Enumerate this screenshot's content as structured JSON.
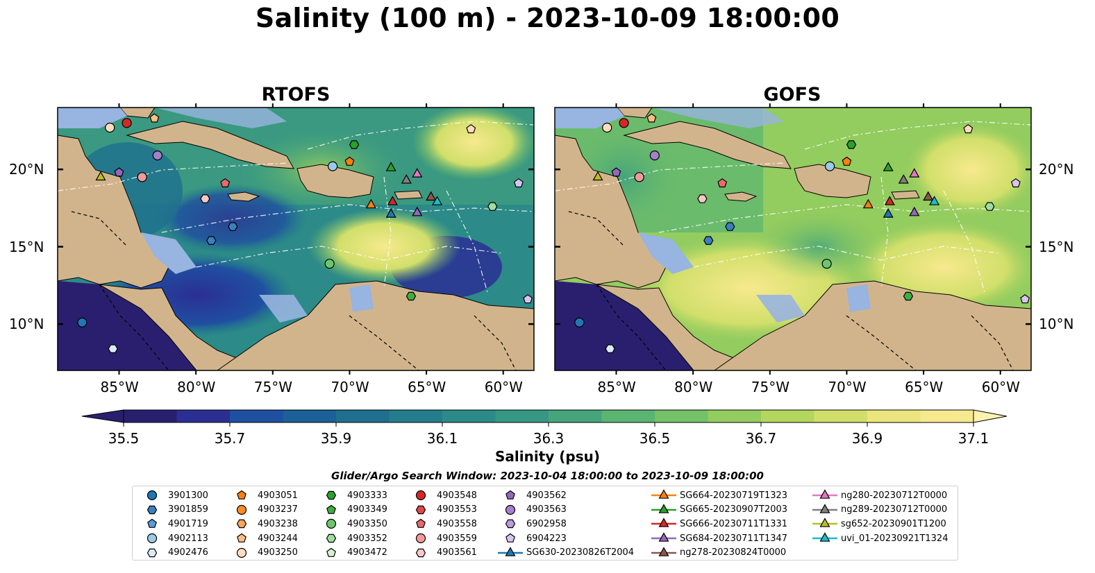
{
  "title": "Salinity (100 m) - 2023-10-09 18:00:00",
  "panels": [
    {
      "id": "rtofs",
      "title": "RTOFS"
    },
    {
      "id": "gofs",
      "title": "GOFS"
    }
  ],
  "axes": {
    "lon_labels": [
      "85°W",
      "80°W",
      "75°W",
      "70°W",
      "65°W",
      "60°W"
    ],
    "lon_values": [
      -85,
      -80,
      -75,
      -70,
      -65,
      -60
    ],
    "lat_labels": [
      "20°N",
      "15°N",
      "10°N"
    ],
    "lat_values": [
      20,
      15,
      10
    ],
    "lon_range": [
      -89,
      -58
    ],
    "lat_range": [
      7,
      24
    ]
  },
  "colorbar": {
    "title": "Salinity (psu)",
    "tick_labels": [
      "35.5",
      "35.7",
      "35.9",
      "36.1",
      "36.3",
      "36.5",
      "36.7",
      "36.9",
      "37.1"
    ],
    "range": [
      35.5,
      37.1
    ],
    "colors": [
      "#2a1f6e",
      "#2b2f94",
      "#1f4fa0",
      "#1b6096",
      "#1f6f8f",
      "#247d8c",
      "#2c8a88",
      "#369783",
      "#45a47c",
      "#5ab472",
      "#75c167",
      "#93cc5f",
      "#b3d65d",
      "#d1df6a",
      "#ece57e",
      "#f7e98e"
    ]
  },
  "colors": {
    "land": "#d2b48c",
    "shallow_water": "#98b4e0",
    "low_salinity": "#2a1f6e",
    "rtofs_mid": "#3a8e86",
    "gofs_mid": "#7cc36a",
    "high_salinity": "#f4e88c"
  },
  "legend": {
    "title": "Glider/Argo Search Window: 2023-10-04 18:00:00 to 2023-10-09 18:00:00",
    "items": [
      {
        "label": "3901300",
        "shape": "circle",
        "color": "#1f77b4"
      },
      {
        "label": "3901859",
        "shape": "hexagon",
        "color": "#3a7fc0"
      },
      {
        "label": "4901719",
        "shape": "pentagon",
        "color": "#5a9ad8"
      },
      {
        "label": "4902113",
        "shape": "circle",
        "color": "#9ccae8"
      },
      {
        "label": "4902476",
        "shape": "hexagon",
        "color": "#d8ecf8"
      },
      {
        "label": "4903051",
        "shape": "pentagon",
        "color": "#ff7f0e"
      },
      {
        "label": "4903237",
        "shape": "circle",
        "color": "#ff8c2a"
      },
      {
        "label": "4903238",
        "shape": "hexagon",
        "color": "#ffa45a"
      },
      {
        "label": "4903244",
        "shape": "pentagon",
        "color": "#ffbe86"
      },
      {
        "label": "4903250",
        "shape": "circle",
        "color": "#ffdcc0"
      },
      {
        "label": "4903333",
        "shape": "hexagon",
        "color": "#2ca02c"
      },
      {
        "label": "4903349",
        "shape": "pentagon",
        "color": "#3fae40"
      },
      {
        "label": "4903350",
        "shape": "circle",
        "color": "#6cc76c"
      },
      {
        "label": "4903352",
        "shape": "hexagon",
        "color": "#9fdc9f"
      },
      {
        "label": "4903472",
        "shape": "pentagon",
        "color": "#d4f2d0"
      },
      {
        "label": "4903548",
        "shape": "circle",
        "color": "#d62728"
      },
      {
        "label": "4903553",
        "shape": "hexagon",
        "color": "#e04848"
      },
      {
        "label": "4903558",
        "shape": "pentagon",
        "color": "#e86a6a"
      },
      {
        "label": "4903559",
        "shape": "circle",
        "color": "#f29a9a"
      },
      {
        "label": "4903561",
        "shape": "hexagon",
        "color": "#f8c8c8"
      },
      {
        "label": "4903562",
        "shape": "pentagon",
        "color": "#9467bd"
      },
      {
        "label": "4903563",
        "shape": "circle",
        "color": "#a580cc"
      },
      {
        "label": "6902958",
        "shape": "hexagon",
        "color": "#b99cdc"
      },
      {
        "label": "6904223",
        "shape": "pentagon",
        "color": "#d8c4f0"
      },
      {
        "label": "SG630-20230826T2004",
        "shape": "triangle",
        "color": "#1f77b4",
        "line": true
      },
      {
        "label": "SG664-20230719T1323",
        "shape": "triangle",
        "color": "#ff7f0e",
        "line": true
      },
      {
        "label": "SG665-20230907T2003",
        "shape": "triangle",
        "color": "#2ca02c",
        "line": true
      },
      {
        "label": "SG666-20230711T1331",
        "shape": "triangle",
        "color": "#d62728",
        "line": true
      },
      {
        "label": "SG684-20230711T1347",
        "shape": "triangle",
        "color": "#9467bd",
        "line": true
      },
      {
        "label": "ng278-20230824T0000",
        "shape": "triangle",
        "color": "#8c564b",
        "line": true
      },
      {
        "label": "ng280-20230712T0000",
        "shape": "triangle",
        "color": "#e377c2",
        "line": true
      },
      {
        "label": "ng289-20230712T0000",
        "shape": "triangle",
        "color": "#7f7f7f",
        "line": true
      },
      {
        "label": "sg652-20230901T1200",
        "shape": "triangle",
        "color": "#bcbd22",
        "line": true
      },
      {
        "label": "uvi_01-20230921T1324",
        "shape": "triangle",
        "color": "#17becf",
        "line": true
      }
    ]
  },
  "markers": [
    {
      "lon": -87.4,
      "lat": 10.1,
      "shape": "circle",
      "color": "#1f77b4"
    },
    {
      "lon": -77.6,
      "lat": 16.3,
      "shape": "hexagon",
      "color": "#3a7fc0"
    },
    {
      "lon": -79.0,
      "lat": 15.4,
      "shape": "hexagon",
      "color": "#3a7fc0"
    },
    {
      "lon": -71.1,
      "lat": 20.2,
      "shape": "circle",
      "color": "#9ccae8"
    },
    {
      "lon": -85.4,
      "lat": 8.4,
      "shape": "hexagon",
      "color": "#d8ecf8"
    },
    {
      "lon": -70.0,
      "lat": 20.5,
      "shape": "pentagon",
      "color": "#ff7f0e"
    },
    {
      "lon": -82.7,
      "lat": 23.3,
      "shape": "pentagon",
      "color": "#ffbe86"
    },
    {
      "lon": -85.6,
      "lat": 22.7,
      "shape": "circle",
      "color": "#ffdcc0"
    },
    {
      "lon": -69.7,
      "lat": 21.6,
      "shape": "hexagon",
      "color": "#2ca02c"
    },
    {
      "lon": -71.3,
      "lat": 13.9,
      "shape": "circle",
      "color": "#6cc76c"
    },
    {
      "lon": -60.7,
      "lat": 17.6,
      "shape": "hexagon",
      "color": "#9fdc9f"
    },
    {
      "lon": -66.0,
      "lat": 11.8,
      "shape": "hexagon",
      "color": "#3fae40"
    },
    {
      "lon": -62.1,
      "lat": 22.6,
      "shape": "pentagon",
      "color": "#ffdcc0"
    },
    {
      "lon": -84.5,
      "lat": 23.0,
      "shape": "circle",
      "color": "#d62728"
    },
    {
      "lon": -78.1,
      "lat": 19.1,
      "shape": "pentagon",
      "color": "#e86a6a"
    },
    {
      "lon": -83.5,
      "lat": 19.5,
      "shape": "circle",
      "color": "#f29a9a"
    },
    {
      "lon": -79.4,
      "lat": 18.1,
      "shape": "hexagon",
      "color": "#f8c8c8"
    },
    {
      "lon": -85.0,
      "lat": 19.8,
      "shape": "pentagon",
      "color": "#9467bd"
    },
    {
      "lon": -82.5,
      "lat": 20.9,
      "shape": "circle",
      "color": "#a580cc"
    },
    {
      "lon": -59.0,
      "lat": 19.1,
      "shape": "pentagon",
      "color": "#d8c4f0"
    },
    {
      "lon": -58.4,
      "lat": 11.6,
      "shape": "pentagon",
      "color": "#d8c4f0"
    },
    {
      "lon": -67.3,
      "lat": 17.1,
      "shape": "triangle",
      "color": "#1f77b4"
    },
    {
      "lon": -68.6,
      "lat": 17.7,
      "shape": "triangle",
      "color": "#ff7f0e"
    },
    {
      "lon": -67.3,
      "lat": 20.1,
      "shape": "triangle",
      "color": "#2ca02c"
    },
    {
      "lon": -67.2,
      "lat": 17.9,
      "shape": "triangle",
      "color": "#d62728"
    },
    {
      "lon": -65.6,
      "lat": 17.2,
      "shape": "triangle",
      "color": "#9467bd"
    },
    {
      "lon": -64.7,
      "lat": 18.2,
      "shape": "triangle",
      "color": "#8c564b"
    },
    {
      "lon": -65.6,
      "lat": 19.7,
      "shape": "triangle",
      "color": "#e377c2"
    },
    {
      "lon": -66.3,
      "lat": 19.3,
      "shape": "triangle",
      "color": "#7f7f7f"
    },
    {
      "lon": -86.2,
      "lat": 19.5,
      "shape": "triangle",
      "color": "#bcbd22"
    },
    {
      "lon": -64.3,
      "lat": 17.9,
      "shape": "triangle",
      "color": "#17becf"
    }
  ]
}
